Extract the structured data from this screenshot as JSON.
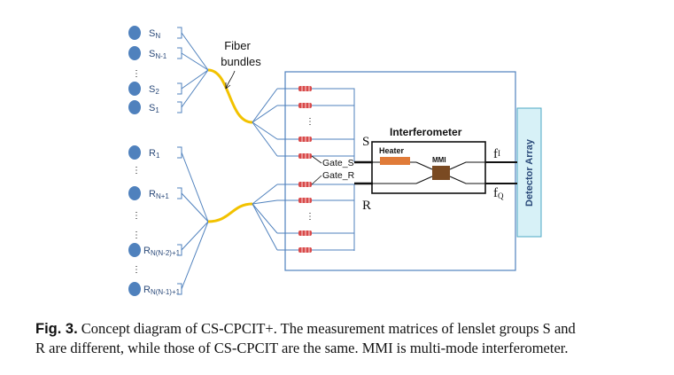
{
  "sources": [
    {
      "label": "S",
      "sub": "N"
    },
    {
      "label": "S",
      "sub": "N-1"
    },
    {
      "label": "S",
      "sub": "2"
    },
    {
      "label": "S",
      "sub": "1"
    }
  ],
  "references": [
    {
      "label": "R",
      "sub": "1"
    },
    {
      "label": "R",
      "sub": "N+1"
    },
    {
      "label": "R",
      "sub": "N(N-2)+1"
    },
    {
      "label": "R",
      "sub": "N(N-1)+1"
    }
  ],
  "fiber_label_line1": "Fiber",
  "fiber_label_line2": "bundles",
  "interferometer_label": "Interferometer",
  "heater_label": "Heater",
  "mmi_label": "MMI",
  "gate_s_label": "Gate_S",
  "gate_r_label": "Gate_R",
  "s_port_label": "S",
  "r_port_label": "R",
  "out_i_label": "f",
  "out_i_sub": "I",
  "out_q_label": "f",
  "out_q_sub": "Q",
  "detector_label": "Detector Array",
  "colors": {
    "dot": "#4f81bd",
    "chip_border": "#4f81bd",
    "detector_fill": "#d7f1f7",
    "detector_border": "#4ea8c4",
    "fiber": "#f2c200",
    "heater": "#e07b39",
    "mmi": "#7a4a22",
    "coupler": "#d94a4a"
  },
  "caption": {
    "fig_label": "Fig. 3.",
    "text_line1": "Concept diagram of CS-CPCIT+. The measurement matrices of lenslet groups S and",
    "text_line2": "R are different, while those of CS-CPCIT are the same. MMI is multi-mode interferometer."
  }
}
